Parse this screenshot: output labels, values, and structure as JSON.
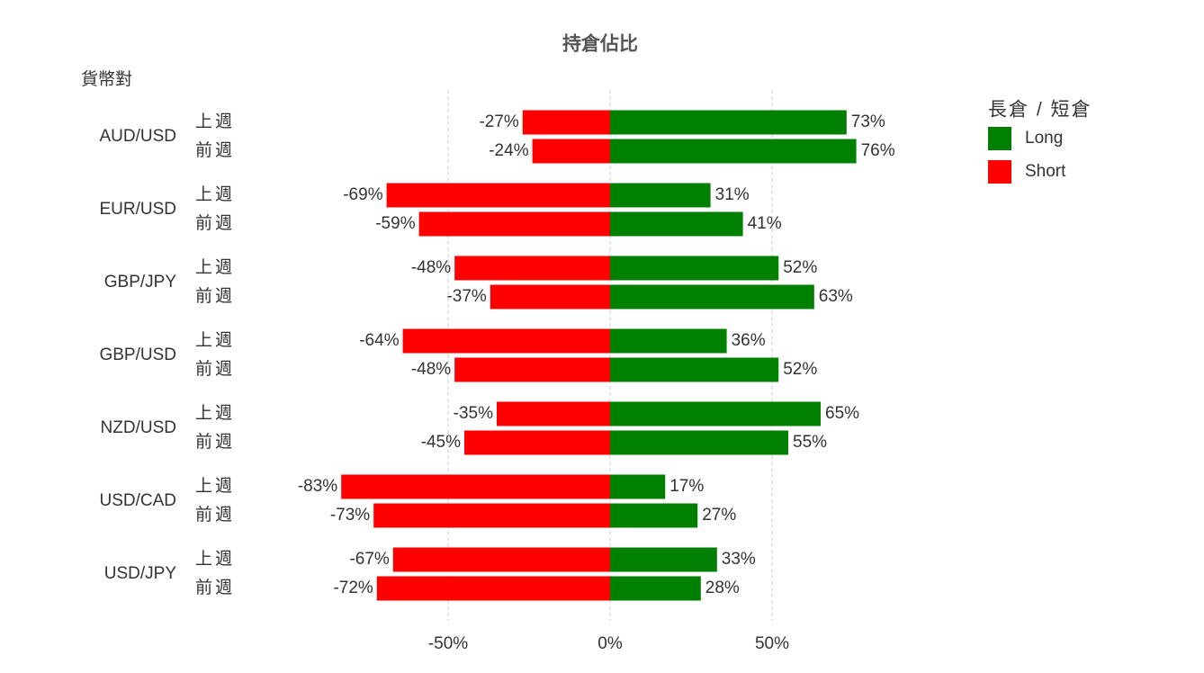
{
  "chart_data": {
    "type": "diverging-bar",
    "title": "持倉佔比",
    "y_axis_label": "貨幣對",
    "groups": [
      "AUD/USD",
      "EUR/USD",
      "GBP/JPY",
      "GBP/USD",
      "NZD/USD",
      "USD/CAD",
      "USD/JPY"
    ],
    "categories": [
      "上週",
      "前週",
      "上週",
      "前週",
      "上週",
      "前週",
      "上週",
      "前週",
      "上週",
      "前週",
      "上週",
      "前週",
      "上週",
      "前週"
    ],
    "series": [
      {
        "name": "Long",
        "color": "#008000",
        "values": [
          73,
          76,
          31,
          41,
          52,
          63,
          36,
          52,
          65,
          55,
          17,
          27,
          33,
          28
        ],
        "value_labels": [
          "73%",
          "76%",
          "31%",
          "41%",
          "52%",
          "63%",
          "36%",
          "52%",
          "65%",
          "55%",
          "17%",
          "27%",
          "33%",
          "28%"
        ]
      },
      {
        "name": "Short",
        "color": "#ff0000",
        "values": [
          -27,
          -24,
          -69,
          -59,
          -48,
          -37,
          -64,
          -48,
          -35,
          -45,
          -83,
          -73,
          -67,
          -72
        ],
        "value_labels": [
          "-27%",
          "-24%",
          "-69%",
          "-59%",
          "-48%",
          "-37%",
          "-64%",
          "-48%",
          "-35%",
          "-45%",
          "-83%",
          "-73%",
          "-67%",
          "-72%"
        ]
      }
    ],
    "legend_title": "長倉 / 短倉",
    "legend": "top-right",
    "xlim": [
      -95,
      90
    ],
    "xticks": [
      {
        "value": -50,
        "label": "-50%"
      },
      {
        "value": 0,
        "label": "0%"
      },
      {
        "value": 50,
        "label": "50%"
      }
    ],
    "grid": true
  }
}
